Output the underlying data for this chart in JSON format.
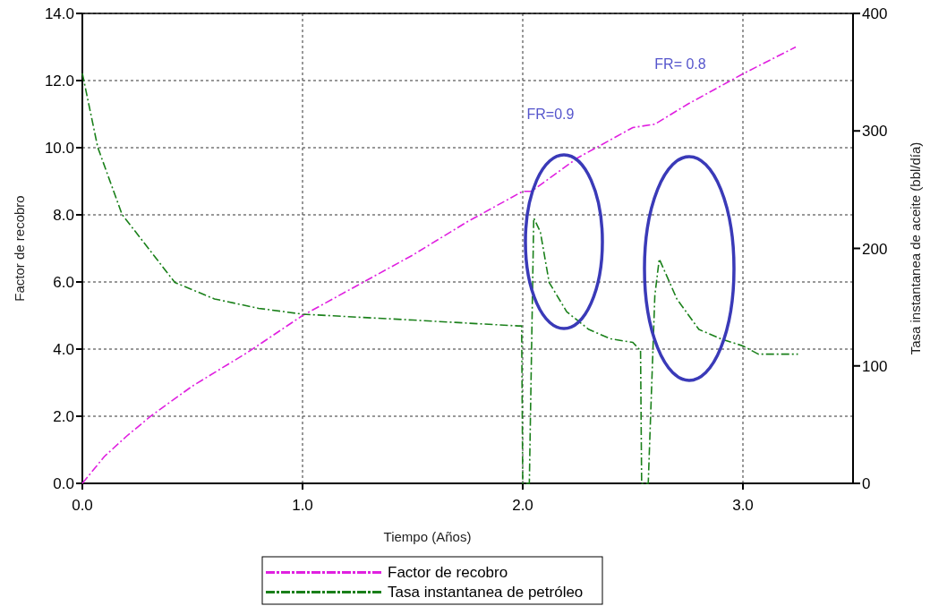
{
  "chart_data": {
    "type": "line",
    "xlabel": "Tiempo (Años)",
    "ylabel": "Factor de recobro",
    "y2label": "Tasa instantanea de aceite (bbl/día)",
    "xlim": [
      0,
      3.5
    ],
    "xticks": [
      {
        "value": 0,
        "label": "0.0"
      },
      {
        "value": 1,
        "label": "1.0"
      },
      {
        "value": 2,
        "label": "2.0"
      },
      {
        "value": 3,
        "label": "3.0"
      }
    ],
    "ylim": [
      0,
      14
    ],
    "yticks": [
      {
        "value": 0,
        "label": "0.0"
      },
      {
        "value": 2,
        "label": "2.0"
      },
      {
        "value": 4,
        "label": "4.0"
      },
      {
        "value": 6,
        "label": "6.0"
      },
      {
        "value": 8,
        "label": "8.0"
      },
      {
        "value": 10,
        "label": "10.0"
      },
      {
        "value": 12,
        "label": "12.0"
      },
      {
        "value": 14,
        "label": "14.0"
      }
    ],
    "y2lim": [
      0,
      400
    ],
    "y2ticks": [
      0,
      100,
      200,
      300,
      400
    ],
    "grid": true,
    "legend": "bottom",
    "line_style": "dashed",
    "marker": "none",
    "series": [
      {
        "name": "Factor de recobro",
        "color": "#e020e0",
        "x": [
          0,
          0.1,
          0.2,
          0.31,
          0.5,
          0.75,
          1.0,
          1.25,
          1.5,
          1.75,
          2.0,
          2.04,
          2.25,
          2.5,
          2.6,
          2.75,
          3.0,
          3.24
        ],
        "values": [
          0,
          0.8,
          1.4,
          2.0,
          2.9,
          3.9,
          5.0,
          5.9,
          6.8,
          7.8,
          8.7,
          8.7,
          9.7,
          10.6,
          10.7,
          11.3,
          12.2,
          13.0
        ]
      },
      {
        "name": "Tasa instantanea de petróleo",
        "color": "#1a801a",
        "axis": "y2",
        "x": [
          0,
          0.07,
          0.18,
          0.3,
          0.42,
          0.6,
          0.8,
          1.0,
          1.5,
          1.98,
          1.995,
          2.0,
          2.03,
          2.05,
          2.08,
          2.12,
          2.2,
          2.3,
          2.4,
          2.5,
          2.53,
          2.535,
          2.54,
          2.57,
          2.6,
          2.62,
          2.7,
          2.8,
          2.9,
          3.0,
          3.07,
          3.25
        ],
        "values": [
          349,
          286,
          229,
          200,
          171,
          157,
          149,
          144,
          139,
          134,
          134,
          0,
          0,
          226,
          214,
          171,
          146,
          131,
          123,
          120,
          114,
          114,
          0,
          0,
          160,
          191,
          157,
          131,
          123,
          117,
          110,
          110
        ]
      }
    ],
    "annotations": [
      "FR=0.9",
      "FR= 0.8"
    ]
  }
}
